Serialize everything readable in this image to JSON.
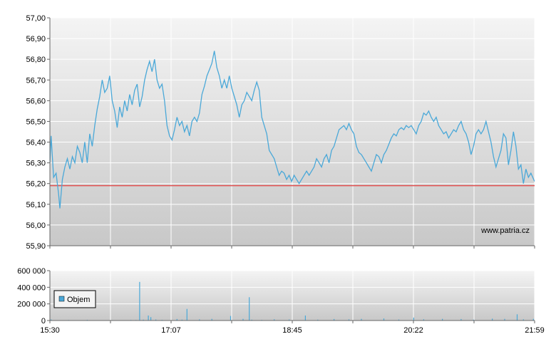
{
  "chart_data": [
    {
      "type": "line",
      "title": "",
      "xlabel": "",
      "ylabel": "",
      "ylim": [
        55.9,
        57.0
      ],
      "yticks": [
        "57,00",
        "56,90",
        "56,80",
        "56,70",
        "56,60",
        "56,50",
        "56,40",
        "56,30",
        "56,20",
        "56,10",
        "56,00",
        "55,90"
      ],
      "grid": true,
      "series": [
        {
          "color": "#4aa8d8",
          "points": [
            [
              "15:30",
              56.3
            ],
            [
              "15:31",
              56.43
            ],
            [
              "15:33",
              56.23
            ],
            [
              "15:35",
              56.25
            ],
            [
              "15:37",
              56.15
            ],
            [
              "15:38",
              56.08
            ],
            [
              "15:40",
              56.22
            ],
            [
              "15:42",
              56.28
            ],
            [
              "15:44",
              56.32
            ],
            [
              "15:46",
              56.27
            ],
            [
              "15:48",
              56.33
            ],
            [
              "15:50",
              56.3
            ],
            [
              "15:52",
              56.38
            ],
            [
              "15:54",
              56.35
            ],
            [
              "15:56",
              56.3
            ],
            [
              "15:58",
              56.4
            ],
            [
              "16:00",
              56.3
            ],
            [
              "16:02",
              56.44
            ],
            [
              "16:04",
              56.38
            ],
            [
              "16:06",
              56.48
            ],
            [
              "16:08",
              56.56
            ],
            [
              "16:10",
              56.62
            ],
            [
              "16:12",
              56.7
            ],
            [
              "16:14",
              56.64
            ],
            [
              "16:16",
              56.66
            ],
            [
              "16:18",
              56.72
            ],
            [
              "16:20",
              56.6
            ],
            [
              "16:22",
              56.55
            ],
            [
              "16:24",
              56.47
            ],
            [
              "16:26",
              56.57
            ],
            [
              "16:28",
              56.52
            ],
            [
              "16:30",
              56.6
            ],
            [
              "16:32",
              56.55
            ],
            [
              "16:34",
              56.63
            ],
            [
              "16:36",
              56.58
            ],
            [
              "16:38",
              56.65
            ],
            [
              "16:40",
              56.68
            ],
            [
              "16:42",
              56.57
            ],
            [
              "16:44",
              56.62
            ],
            [
              "16:46",
              56.7
            ],
            [
              "16:48",
              56.75
            ],
            [
              "16:50",
              56.79
            ],
            [
              "16:52",
              56.74
            ],
            [
              "16:54",
              56.8
            ],
            [
              "16:56",
              56.7
            ],
            [
              "16:58",
              56.66
            ],
            [
              "17:00",
              56.68
            ],
            [
              "17:02",
              56.6
            ],
            [
              "17:04",
              56.48
            ],
            [
              "17:06",
              56.43
            ],
            [
              "17:08",
              56.41
            ],
            [
              "17:10",
              56.46
            ],
            [
              "17:12",
              56.52
            ],
            [
              "17:14",
              56.48
            ],
            [
              "17:16",
              56.5
            ],
            [
              "17:18",
              56.45
            ],
            [
              "17:20",
              56.48
            ],
            [
              "17:22",
              56.43
            ],
            [
              "17:24",
              56.5
            ],
            [
              "17:26",
              56.52
            ],
            [
              "17:28",
              56.5
            ],
            [
              "17:30",
              56.54
            ],
            [
              "17:32",
              56.63
            ],
            [
              "17:34",
              56.67
            ],
            [
              "17:36",
              56.72
            ],
            [
              "17:38",
              56.75
            ],
            [
              "17:40",
              56.78
            ],
            [
              "17:42",
              56.84
            ],
            [
              "17:44",
              56.76
            ],
            [
              "17:46",
              56.72
            ],
            [
              "17:48",
              56.66
            ],
            [
              "17:50",
              56.7
            ],
            [
              "17:52",
              56.66
            ],
            [
              "17:54",
              56.72
            ],
            [
              "17:56",
              56.66
            ],
            [
              "17:58",
              56.62
            ],
            [
              "18:00",
              56.58
            ],
            [
              "18:02",
              56.52
            ],
            [
              "18:04",
              56.58
            ],
            [
              "18:06",
              56.6
            ],
            [
              "18:08",
              56.64
            ],
            [
              "18:10",
              56.62
            ],
            [
              "18:12",
              56.6
            ],
            [
              "18:14",
              56.65
            ],
            [
              "18:16",
              56.69
            ],
            [
              "18:18",
              56.65
            ],
            [
              "18:20",
              56.52
            ],
            [
              "18:22",
              56.48
            ],
            [
              "18:24",
              56.44
            ],
            [
              "18:26",
              56.36
            ],
            [
              "18:28",
              56.34
            ],
            [
              "18:30",
              56.32
            ],
            [
              "18:32",
              56.28
            ],
            [
              "18:34",
              56.24
            ],
            [
              "18:36",
              56.26
            ],
            [
              "18:38",
              56.25
            ],
            [
              "18:40",
              56.22
            ],
            [
              "18:42",
              56.24
            ],
            [
              "18:44",
              56.21
            ],
            [
              "18:46",
              56.24
            ],
            [
              "18:48",
              56.22
            ],
            [
              "18:50",
              56.2
            ],
            [
              "18:52",
              56.22
            ],
            [
              "18:54",
              56.24
            ],
            [
              "18:56",
              56.26
            ],
            [
              "18:58",
              56.24
            ],
            [
              "19:00",
              56.26
            ],
            [
              "19:02",
              56.28
            ],
            [
              "19:04",
              56.32
            ],
            [
              "19:06",
              56.3
            ],
            [
              "19:08",
              56.28
            ],
            [
              "19:10",
              56.32
            ],
            [
              "19:12",
              56.34
            ],
            [
              "19:14",
              56.3
            ],
            [
              "19:16",
              56.36
            ],
            [
              "19:18",
              56.38
            ],
            [
              "19:20",
              56.42
            ],
            [
              "19:22",
              56.46
            ],
            [
              "19:24",
              56.47
            ],
            [
              "19:26",
              56.48
            ],
            [
              "19:28",
              56.46
            ],
            [
              "19:30",
              56.49
            ],
            [
              "19:32",
              56.46
            ],
            [
              "19:34",
              56.44
            ],
            [
              "19:36",
              56.38
            ],
            [
              "19:38",
              56.35
            ],
            [
              "19:40",
              56.34
            ],
            [
              "19:42",
              56.32
            ],
            [
              "19:44",
              56.3
            ],
            [
              "19:46",
              56.28
            ],
            [
              "19:48",
              56.26
            ],
            [
              "19:50",
              56.3
            ],
            [
              "19:52",
              56.34
            ],
            [
              "19:54",
              56.33
            ],
            [
              "19:56",
              56.3
            ],
            [
              "19:58",
              56.34
            ],
            [
              "20:00",
              56.36
            ],
            [
              "20:02",
              56.39
            ],
            [
              "20:04",
              56.42
            ],
            [
              "20:06",
              56.44
            ],
            [
              "20:08",
              56.43
            ],
            [
              "20:10",
              56.46
            ],
            [
              "20:12",
              56.47
            ],
            [
              "20:14",
              56.46
            ],
            [
              "20:16",
              56.48
            ],
            [
              "20:18",
              56.47
            ],
            [
              "20:20",
              56.48
            ],
            [
              "20:22",
              56.46
            ],
            [
              "20:24",
              56.44
            ],
            [
              "20:26",
              56.48
            ],
            [
              "20:28",
              56.5
            ],
            [
              "20:30",
              56.54
            ],
            [
              "20:32",
              56.53
            ],
            [
              "20:34",
              56.55
            ],
            [
              "20:36",
              56.52
            ],
            [
              "20:38",
              56.5
            ],
            [
              "20:40",
              56.52
            ],
            [
              "20:42",
              56.48
            ],
            [
              "20:44",
              56.46
            ],
            [
              "20:46",
              56.44
            ],
            [
              "20:48",
              56.45
            ],
            [
              "20:50",
              56.42
            ],
            [
              "20:52",
              56.44
            ],
            [
              "20:54",
              56.46
            ],
            [
              "20:56",
              56.45
            ],
            [
              "20:58",
              56.48
            ],
            [
              "21:00",
              56.5
            ],
            [
              "21:02",
              56.46
            ],
            [
              "21:04",
              56.44
            ],
            [
              "21:06",
              56.4
            ],
            [
              "21:08",
              56.34
            ],
            [
              "21:10",
              56.38
            ],
            [
              "21:12",
              56.44
            ],
            [
              "21:14",
              56.46
            ],
            [
              "21:16",
              56.44
            ],
            [
              "21:18",
              56.46
            ],
            [
              "21:20",
              56.5
            ],
            [
              "21:22",
              56.45
            ],
            [
              "21:24",
              56.4
            ],
            [
              "21:26",
              56.33
            ],
            [
              "21:28",
              56.28
            ],
            [
              "21:30",
              56.32
            ],
            [
              "21:32",
              56.36
            ],
            [
              "21:34",
              56.44
            ],
            [
              "21:36",
              56.42
            ],
            [
              "21:38",
              56.29
            ],
            [
              "21:40",
              56.36
            ],
            [
              "21:42",
              56.45
            ],
            [
              "21:44",
              56.38
            ],
            [
              "21:46",
              56.27
            ],
            [
              "21:48",
              56.29
            ],
            [
              "21:50",
              56.2
            ],
            [
              "21:52",
              56.27
            ],
            [
              "21:54",
              56.23
            ],
            [
              "21:56",
              56.25
            ],
            [
              "21:59",
              56.21
            ]
          ]
        }
      ],
      "reference_line": {
        "value": 56.19,
        "color": "#e05050"
      },
      "annotation": "www.patria.cz"
    },
    {
      "type": "bar",
      "title": "",
      "xlabel": "",
      "ylabel": "",
      "ylim": [
        0,
        600000
      ],
      "yticks": [
        "600 000",
        "400 000",
        "200 000",
        "0"
      ],
      "xticks": [
        "15:30",
        "17:07",
        "18:45",
        "20:22",
        "21:59"
      ],
      "grid": true,
      "legend": {
        "position": "left",
        "entries": [
          "Objem"
        ]
      },
      "series": [
        {
          "name": "Objem",
          "color": "#4aa8d8",
          "points": [
            [
              "15:31",
              12000
            ],
            [
              "15:45",
              6000
            ],
            [
              "16:00",
              8000
            ],
            [
              "16:20",
              5000
            ],
            [
              "16:35",
              7000
            ],
            [
              "16:39",
              6000
            ],
            [
              "16:42",
              465000
            ],
            [
              "16:45",
              10000
            ],
            [
              "16:49",
              60000
            ],
            [
              "16:51",
              40000
            ],
            [
              "16:55",
              12000
            ],
            [
              "17:00",
              8000
            ],
            [
              "17:12",
              18000
            ],
            [
              "17:16",
              10000
            ],
            [
              "17:20",
              140000
            ],
            [
              "17:30",
              14000
            ],
            [
              "17:40",
              20000
            ],
            [
              "17:55",
              55000
            ],
            [
              "18:05",
              20000
            ],
            [
              "18:10",
              280000
            ],
            [
              "18:12",
              10000
            ],
            [
              "18:20",
              8000
            ],
            [
              "18:30",
              15000
            ],
            [
              "18:42",
              12000
            ],
            [
              "18:55",
              60000
            ],
            [
              "19:05",
              10000
            ],
            [
              "19:18",
              18000
            ],
            [
              "19:30",
              14000
            ],
            [
              "19:40",
              20000
            ],
            [
              "19:58",
              25000
            ],
            [
              "20:10",
              12000
            ],
            [
              "20:22",
              35000
            ],
            [
              "20:30",
              15000
            ],
            [
              "20:45",
              20000
            ],
            [
              "21:00",
              18000
            ],
            [
              "21:10",
              10000
            ],
            [
              "21:25",
              22000
            ],
            [
              "21:35",
              20000
            ],
            [
              "21:45",
              75000
            ],
            [
              "21:50",
              15000
            ],
            [
              "21:58",
              20000
            ]
          ]
        }
      ]
    }
  ]
}
